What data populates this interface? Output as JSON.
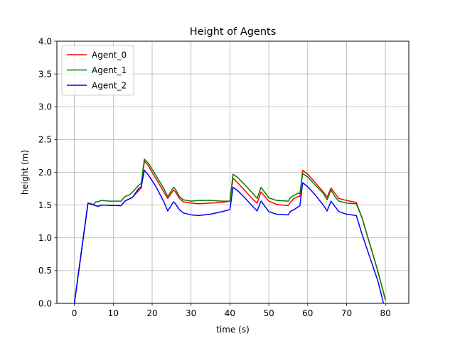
{
  "chart_data": {
    "type": "line",
    "title": "Height of Agents",
    "xlabel": "time (s)",
    "ylabel": "height (m)",
    "xlim": [
      -4.5,
      86
    ],
    "ylim": [
      0,
      4.0
    ],
    "xticks": [
      0,
      10,
      20,
      30,
      40,
      50,
      60,
      70,
      80
    ],
    "yticks": [
      0.0,
      0.5,
      1.0,
      1.5,
      2.0,
      2.5,
      3.0,
      3.5,
      4.0
    ],
    "grid": true,
    "legend_position": "top-left",
    "series": [
      {
        "name": "Agent_0",
        "color": "#ff0000",
        "points": [
          [
            0,
            0
          ],
          [
            3.5,
            1.53
          ],
          [
            5,
            1.5
          ],
          [
            6,
            1.48
          ],
          [
            7,
            1.5
          ],
          [
            12,
            1.49
          ],
          [
            13,
            1.56
          ],
          [
            15,
            1.62
          ],
          [
            16.5,
            1.72
          ],
          [
            17.2,
            1.76
          ],
          [
            18,
            2.17
          ],
          [
            19,
            2.1
          ],
          [
            21,
            1.9
          ],
          [
            23,
            1.7
          ],
          [
            24,
            1.6
          ],
          [
            25.5,
            1.73
          ],
          [
            26,
            1.7
          ],
          [
            27,
            1.6
          ],
          [
            28,
            1.55
          ],
          [
            30,
            1.53
          ],
          [
            32,
            1.52
          ],
          [
            35,
            1.53
          ],
          [
            38,
            1.54
          ],
          [
            40,
            1.56
          ],
          [
            40.8,
            1.91
          ],
          [
            42,
            1.84
          ],
          [
            44,
            1.71
          ],
          [
            46,
            1.58
          ],
          [
            47,
            1.53
          ],
          [
            48,
            1.7
          ],
          [
            49,
            1.63
          ],
          [
            50,
            1.56
          ],
          [
            52,
            1.51
          ],
          [
            55,
            1.49
          ],
          [
            55.5,
            1.54
          ],
          [
            56.5,
            1.6
          ],
          [
            57.5,
            1.63
          ],
          [
            58,
            1.63
          ],
          [
            58.7,
            2.03
          ],
          [
            60,
            1.97
          ],
          [
            62,
            1.84
          ],
          [
            64,
            1.7
          ],
          [
            65,
            1.62
          ],
          [
            66,
            1.76
          ],
          [
            67,
            1.68
          ],
          [
            68,
            1.6
          ],
          [
            70,
            1.57
          ],
          [
            72.5,
            1.54
          ],
          [
            74,
            1.3
          ],
          [
            76,
            0.9
          ],
          [
            78,
            0.5
          ],
          [
            80,
            0.05
          ]
        ]
      },
      {
        "name": "Agent_1",
        "color": "#008000",
        "points": [
          [
            0,
            0
          ],
          [
            3.5,
            1.53
          ],
          [
            5,
            1.51
          ],
          [
            5.5,
            1.55
          ],
          [
            6,
            1.55
          ],
          [
            7,
            1.57
          ],
          [
            9,
            1.56
          ],
          [
            12,
            1.56
          ],
          [
            13,
            1.63
          ],
          [
            14,
            1.65
          ],
          [
            15,
            1.7
          ],
          [
            16.5,
            1.8
          ],
          [
            17.2,
            1.83
          ],
          [
            18,
            2.2
          ],
          [
            19,
            2.14
          ],
          [
            21,
            1.95
          ],
          [
            23,
            1.75
          ],
          [
            24,
            1.63
          ],
          [
            25.5,
            1.77
          ],
          [
            26,
            1.74
          ],
          [
            27,
            1.63
          ],
          [
            28,
            1.58
          ],
          [
            30,
            1.56
          ],
          [
            32,
            1.57
          ],
          [
            35,
            1.57
          ],
          [
            38,
            1.56
          ],
          [
            40,
            1.56
          ],
          [
            40.8,
            1.97
          ],
          [
            42,
            1.92
          ],
          [
            44,
            1.8
          ],
          [
            46,
            1.67
          ],
          [
            47,
            1.6
          ],
          [
            48,
            1.77
          ],
          [
            49,
            1.69
          ],
          [
            50,
            1.61
          ],
          [
            52,
            1.57
          ],
          [
            55,
            1.56
          ],
          [
            55.5,
            1.61
          ],
          [
            56.5,
            1.65
          ],
          [
            57.5,
            1.68
          ],
          [
            58,
            1.68
          ],
          [
            58.7,
            1.98
          ],
          [
            60,
            1.93
          ],
          [
            62,
            1.8
          ],
          [
            64,
            1.68
          ],
          [
            65,
            1.58
          ],
          [
            66,
            1.73
          ],
          [
            67,
            1.63
          ],
          [
            68,
            1.56
          ],
          [
            70,
            1.53
          ],
          [
            72.5,
            1.52
          ],
          [
            74,
            1.3
          ],
          [
            76,
            0.9
          ],
          [
            78,
            0.5
          ],
          [
            80,
            0.05
          ]
        ]
      },
      {
        "name": "Agent_2",
        "color": "#0000ff",
        "points": [
          [
            0,
            0
          ],
          [
            3.5,
            1.53
          ],
          [
            5,
            1.5
          ],
          [
            6,
            1.48
          ],
          [
            7,
            1.5
          ],
          [
            12,
            1.49
          ],
          [
            13,
            1.56
          ],
          [
            15,
            1.62
          ],
          [
            16.5,
            1.75
          ],
          [
            17.2,
            1.78
          ],
          [
            18,
            2.03
          ],
          [
            19,
            1.96
          ],
          [
            21,
            1.78
          ],
          [
            23,
            1.55
          ],
          [
            24,
            1.41
          ],
          [
            25.5,
            1.55
          ],
          [
            26,
            1.52
          ],
          [
            27,
            1.43
          ],
          [
            28,
            1.38
          ],
          [
            30,
            1.35
          ],
          [
            32,
            1.34
          ],
          [
            35,
            1.36
          ],
          [
            38,
            1.4
          ],
          [
            40,
            1.43
          ],
          [
            40.8,
            1.77
          ],
          [
            42,
            1.72
          ],
          [
            44,
            1.6
          ],
          [
            46,
            1.47
          ],
          [
            47,
            1.41
          ],
          [
            48,
            1.56
          ],
          [
            49,
            1.48
          ],
          [
            50,
            1.4
          ],
          [
            52,
            1.36
          ],
          [
            55,
            1.35
          ],
          [
            55.5,
            1.4
          ],
          [
            56.5,
            1.43
          ],
          [
            57.5,
            1.47
          ],
          [
            58,
            1.49
          ],
          [
            58.7,
            1.84
          ],
          [
            60,
            1.78
          ],
          [
            62,
            1.65
          ],
          [
            64,
            1.5
          ],
          [
            65,
            1.41
          ],
          [
            66,
            1.56
          ],
          [
            67,
            1.48
          ],
          [
            68,
            1.4
          ],
          [
            70,
            1.36
          ],
          [
            72.5,
            1.34
          ],
          [
            74,
            1.05
          ],
          [
            76,
            0.7
          ],
          [
            78,
            0.35
          ],
          [
            79.5,
            0
          ]
        ]
      }
    ]
  }
}
